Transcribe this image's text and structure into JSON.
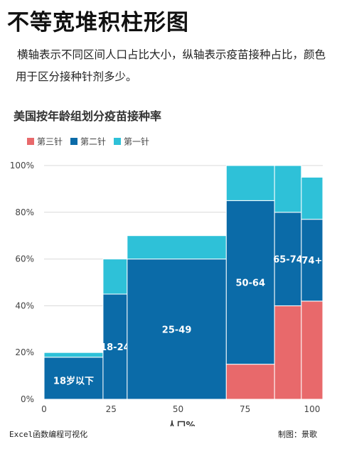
{
  "page": {
    "title": "不等宽堆积柱形图",
    "description": "横轴表示不同区间人口占比大小，纵轴表示疫苗接种占比，颜色用于区分接种针剂多少。",
    "footer_left": "Excel函数编程可视化",
    "footer_right": "制图：景歌"
  },
  "chart_data": {
    "type": "bar",
    "subtype": "variable-width stacked (marimekko)",
    "title": "美国按年龄组划分疫苗接种率",
    "xlabel": "人口%",
    "ylabel": "",
    "xlim": [
      0,
      100
    ],
    "ylim": [
      0,
      100
    ],
    "x_ticks": [
      "0",
      "25",
      "50",
      "75",
      "100"
    ],
    "x_tick_values": [
      0,
      25,
      50,
      75,
      100
    ],
    "y_ticks": [
      "0%",
      "20%",
      "40%",
      "60%",
      "80%",
      "100%"
    ],
    "y_tick_values": [
      0,
      20,
      40,
      60,
      80,
      100
    ],
    "legend": {
      "position": "top-left",
      "order": [
        "第三针",
        "第二针",
        "第一针"
      ]
    },
    "groups": [
      {
        "label": "18岁以下",
        "x_start": 0,
        "x_end": 22
      },
      {
        "label": "18-24",
        "x_start": 22,
        "x_end": 31
      },
      {
        "label": "25-49",
        "x_start": 31,
        "x_end": 68
      },
      {
        "label": "50-64",
        "x_start": 68,
        "x_end": 86
      },
      {
        "label": "65-74",
        "x_start": 86,
        "x_end": 96
      },
      {
        "label": "74+",
        "x_start": 96,
        "x_end": 104
      }
    ],
    "series": [
      {
        "name": "第三针",
        "color": "#E8696B",
        "values": [
          0,
          0,
          0,
          15,
          40,
          42
        ]
      },
      {
        "name": "第二针",
        "color": "#0B6BA8",
        "values": [
          18,
          45,
          60,
          85,
          80,
          77
        ]
      },
      {
        "name": "第一针",
        "color": "#2EC1D8",
        "values": [
          20,
          60,
          70,
          100,
          100,
          95
        ]
      }
    ],
    "grid": true
  }
}
